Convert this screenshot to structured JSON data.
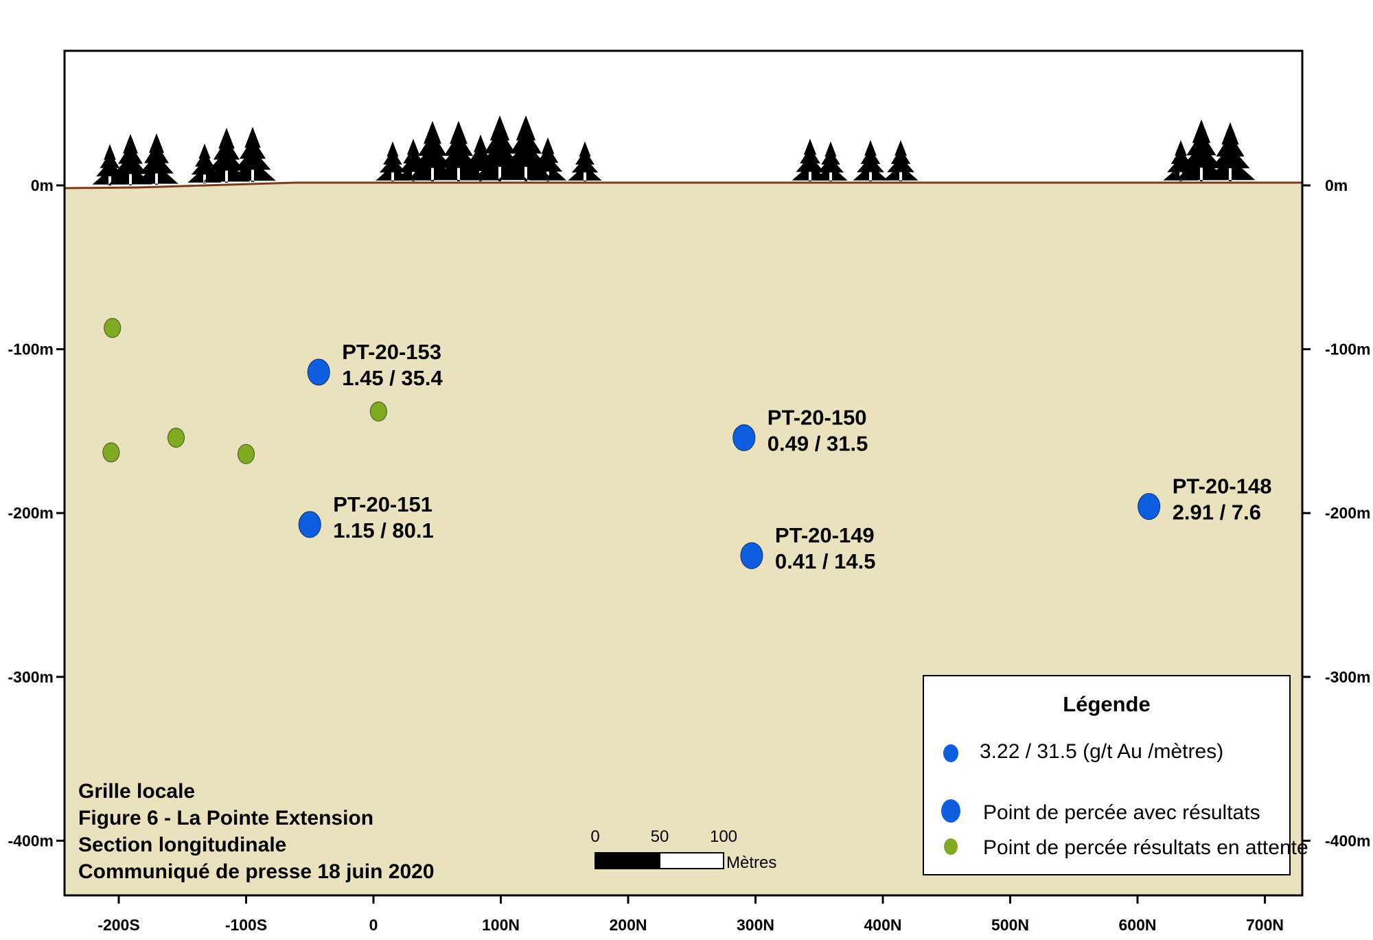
{
  "x_axis": {
    "ticks": [
      {
        "value": -200,
        "label": "-200S"
      },
      {
        "value": -100,
        "label": "-100S"
      },
      {
        "value": 0,
        "label": "0"
      },
      {
        "value": 100,
        "label": "100N"
      },
      {
        "value": 200,
        "label": "200N"
      },
      {
        "value": 300,
        "label": "300N"
      },
      {
        "value": 400,
        "label": "400N"
      },
      {
        "value": 500,
        "label": "500N"
      },
      {
        "value": 600,
        "label": "600N"
      },
      {
        "value": 700,
        "label": "700N"
      }
    ]
  },
  "y_axis": {
    "ticks": [
      {
        "value": 0,
        "label": "0m"
      },
      {
        "value": -100,
        "label": "-100m"
      },
      {
        "value": -200,
        "label": "-200m"
      },
      {
        "value": -300,
        "label": "-300m"
      },
      {
        "value": -400,
        "label": "-400m"
      }
    ]
  },
  "drill_holes_with_results": [
    {
      "id": "PT-20-153",
      "result": "1.45 / 35.4",
      "x": -43,
      "y": -114
    },
    {
      "id": "PT-20-151",
      "result": "1.15 / 80.1",
      "x": -50,
      "y": -207
    },
    {
      "id": "PT-20-150",
      "result": "0.49 / 31.5",
      "x": 291,
      "y": -154
    },
    {
      "id": "PT-20-149",
      "result": "0.41  / 14.5",
      "x": 297,
      "y": -226
    },
    {
      "id": "PT-20-148",
      "result": "2.91  / 7.6",
      "x": 609,
      "y": -196
    }
  ],
  "drill_holes_pending": [
    {
      "x": -205,
      "y": -87
    },
    {
      "x": -206,
      "y": -163
    },
    {
      "x": -155,
      "y": -154
    },
    {
      "x": -100,
      "y": -164
    },
    {
      "x": 4,
      "y": -138
    }
  ],
  "caption": [
    "Grille locale",
    "Figure 6 - La Pointe Extension",
    "Section longitudinale",
    "Communiqué de presse 18 juin 2020"
  ],
  "legend": {
    "title": "Légende",
    "example_label": "3.22 / 31.5 (g/t Au /mètres)",
    "with_results_label": "Point de percée avec résultats",
    "pending_label": "Point de percée résultats en attente"
  },
  "scale_bar": {
    "labels": [
      "0",
      "50",
      "100"
    ],
    "unit": "Mètres"
  },
  "colors": {
    "ground": "#EAE1BE",
    "surface_line": "#7A3B1C",
    "results_point": "#0D5FE0",
    "pending_point": "#7FAA21",
    "trees": "#000000"
  }
}
